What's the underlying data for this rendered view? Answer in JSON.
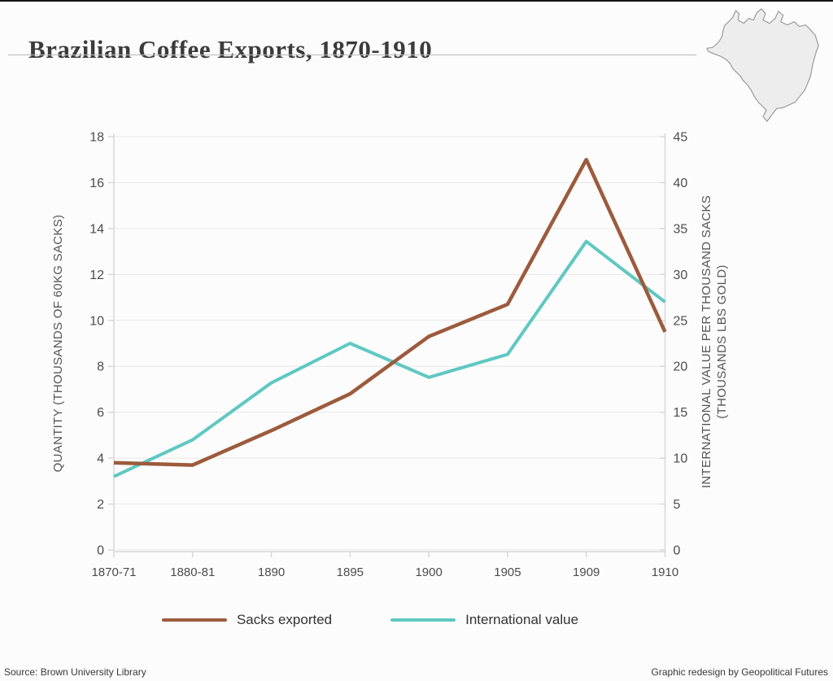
{
  "page": {
    "title": "Brazilian Coffee Exports, 1870-1910",
    "source": "Source: Brown University Library",
    "credit": "Graphic redesign by Geopolitical Futures"
  },
  "colors": {
    "sacks_line": "#9c5b3d",
    "value_line": "#5fc8c1",
    "grid": "#e7e7e7",
    "axis_line": "#d8d8d8",
    "tick_text": "#4c4c4c",
    "background": "#fcfcfc",
    "map_fill": "#ededed",
    "map_stroke": "#9a9a9a",
    "top_border": "#161616"
  },
  "chart_data": {
    "type": "line",
    "title": "Brazilian Coffee Exports, 1870-1910",
    "categories": [
      "1870-71",
      "1880-81",
      "1890",
      "1895",
      "1900",
      "1905",
      "1909",
      "1910"
    ],
    "series": [
      {
        "name": "Sacks exported",
        "axis": "left",
        "color": "#9c5b3d",
        "values": [
          3.8,
          3.7,
          5.2,
          6.8,
          9.3,
          10.7,
          17.0,
          9.5
        ]
      },
      {
        "name": "International value",
        "axis": "right",
        "color": "#5fc8c1",
        "values": [
          8,
          12,
          18.2,
          22.5,
          18.8,
          21.3,
          33.6,
          27
        ]
      }
    ],
    "left_axis": {
      "label": "QUANTITY (THOUSANDS OF 60KG SACKS)",
      "min": 0,
      "max": 18,
      "ticks": [
        0,
        2,
        4,
        6,
        8,
        10,
        12,
        14,
        16,
        18
      ]
    },
    "right_axis": {
      "label_line1": "INTERNATIONAL VALUE PER THOUSAND SACKS",
      "label_line2": "(THOUSANDS LBS GOLD)",
      "min": 0,
      "max": 45,
      "ticks": [
        0,
        5,
        10,
        15,
        20,
        25,
        30,
        35,
        40,
        45
      ]
    },
    "grid": true,
    "legend_position": "bottom"
  },
  "legend": {
    "items": [
      {
        "label": "Sacks exported",
        "color": "#9c5b3d"
      },
      {
        "label": "International value",
        "color": "#5fc8c1"
      }
    ]
  }
}
